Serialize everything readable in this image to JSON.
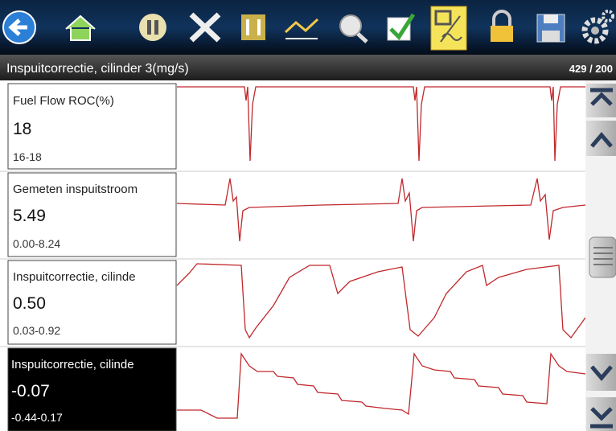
{
  "header": {
    "title": "Inspuitcorrectie, cilinder 3(mg/s)",
    "counter": "429 / 200"
  },
  "panels": [
    {
      "name": "Fuel Flow ROC(%)",
      "value": "18",
      "range": "16-18"
    },
    {
      "name": "Gemeten inspuitstroom",
      "value": "5.49",
      "range": "0.00-8.24"
    },
    {
      "name": "Inspuitcorrectie, cilinde",
      "value": "0.50",
      "range": "0.03-0.92"
    },
    {
      "name": "Inspuitcorrectie, cilinde",
      "value": "-0.07",
      "range": "-0.44-0.17"
    }
  ]
}
